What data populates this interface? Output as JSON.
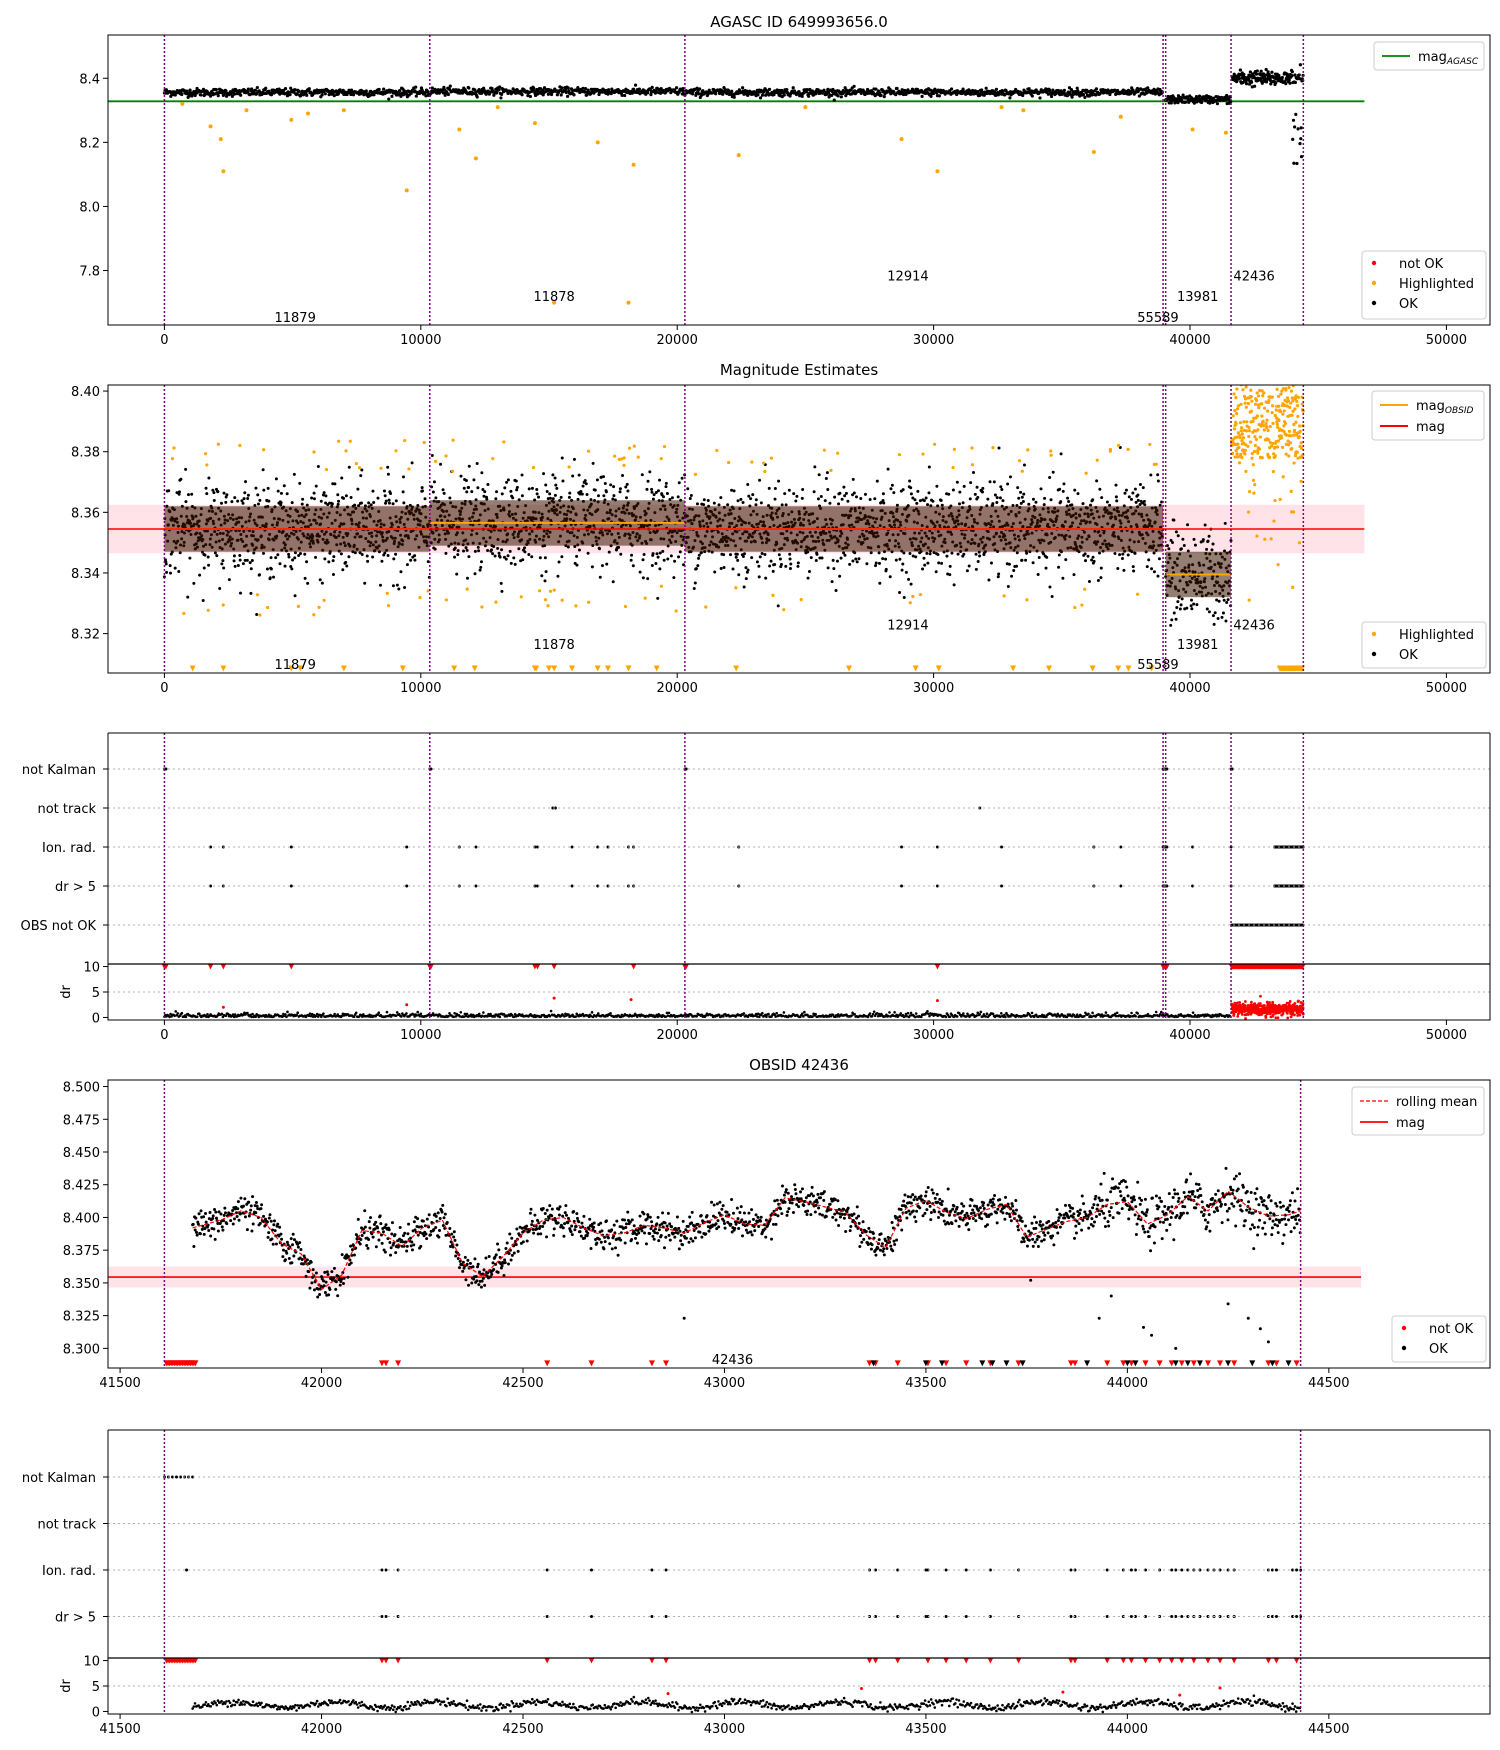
{
  "colors": {
    "ok": "#000000",
    "highlighted": "#ffa500",
    "not_ok": "#ff0000",
    "agasc_line": "#008000",
    "mag_line": "#ff0000",
    "mag_band": "#ffc0cb",
    "obsid_line": "#ffa500",
    "boundary": "#800080",
    "grid": "#b0b0b0"
  },
  "chart_data": [
    {
      "id": "agasc_overview",
      "type": "scatter",
      "title": "AGASC ID 649993656.0",
      "xlim": [
        -2200,
        51700
      ],
      "ylim": [
        7.63,
        8.535
      ],
      "xticks": [
        0,
        10000,
        20000,
        30000,
        40000,
        50000
      ],
      "yticks": [
        7.8,
        8.0,
        8.2,
        8.4
      ],
      "ytick_labels": [
        "7.8",
        "8.0",
        "8.2",
        "8.4"
      ],
      "boundaries": [
        0,
        10350,
        20300,
        38950,
        39050,
        41600,
        44420
      ],
      "hlines": [
        {
          "name": "mag_AGASC",
          "value": 8.328,
          "x_range": [
            -2200,
            46800
          ],
          "color": "#008000"
        }
      ],
      "obsid_labels": [
        {
          "text": "11879",
          "x": 5100,
          "y": 7.655
        },
        {
          "text": "11878",
          "x": 15200,
          "y": 7.72
        },
        {
          "text": "12914",
          "x": 29000,
          "y": 7.785
        },
        {
          "text": "55589",
          "x": 38750,
          "y": 7.655
        },
        {
          "text": "13981",
          "x": 40300,
          "y": 7.72
        },
        {
          "text": "42436",
          "x": 42500,
          "y": 7.785
        }
      ],
      "series": [
        {
          "name": "not OK",
          "color": "#ff0000"
        },
        {
          "name": "Highlighted",
          "color": "#ffa500"
        },
        {
          "name": "OK",
          "color": "#000000"
        }
      ],
      "legend_top": {
        "label": "mag",
        "subscript": "AGASC"
      },
      "legend_bottom_entries": [
        "not OK",
        "Highlighted",
        "OK"
      ]
    },
    {
      "id": "magnitude_estimates",
      "type": "scatter",
      "title": "Magnitude Estimates",
      "xlim": [
        -2200,
        51700
      ],
      "ylim": [
        8.307,
        8.402
      ],
      "xticks": [
        0,
        10000,
        20000,
        30000,
        40000,
        50000
      ],
      "yticks": [
        8.32,
        8.34,
        8.36,
        8.38,
        8.4
      ],
      "ytick_labels": [
        "8.32",
        "8.34",
        "8.36",
        "8.38",
        "8.40"
      ],
      "boundaries": [
        0,
        10350,
        20300,
        38950,
        39050,
        41600,
        44420
      ],
      "mag": {
        "value": 8.3545,
        "band": [
          8.3465,
          8.3625
        ],
        "x_range": [
          -2200,
          46800
        ]
      },
      "obsid_means": [
        {
          "x": [
            0,
            10350
          ],
          "value": 8.3545
        },
        {
          "x": [
            10350,
            20300
          ],
          "value": 8.3565
        },
        {
          "x": [
            20300,
            38950
          ],
          "value": 8.3545
        },
        {
          "x": [
            39050,
            41600
          ],
          "value": 8.3395
        }
      ],
      "obsid_labels": [
        {
          "text": "11879",
          "x": 5100,
          "y": 8.31
        },
        {
          "text": "11878",
          "x": 15200,
          "y": 8.3165
        },
        {
          "text": "12914",
          "x": 29000,
          "y": 8.323
        },
        {
          "text": "55589",
          "x": 38750,
          "y": 8.31
        },
        {
          "text": "13981",
          "x": 40300,
          "y": 8.3165
        },
        {
          "text": "42436",
          "x": 42500,
          "y": 8.323
        }
      ],
      "legend_top": [
        {
          "label": "mag",
          "subscript": "OBSID",
          "color": "#ffa500"
        },
        {
          "label": "mag",
          "subscript": "",
          "color": "#ff0000"
        }
      ],
      "legend_bottom_entries": [
        "Highlighted",
        "OK"
      ]
    },
    {
      "id": "flags_overview",
      "type": "scatter",
      "categories": [
        "not Kalman",
        "not track",
        "Ion. rad.",
        "dr > 5",
        "OBS not OK"
      ],
      "xlim": [
        -2200,
        51700
      ],
      "xticks": [
        0,
        10000,
        20000,
        30000,
        40000,
        50000
      ],
      "boundaries": [
        0,
        10350,
        20300,
        38950,
        39050,
        41600,
        44420
      ],
      "flag_times": {
        "not Kalman": [
          0,
          60,
          10350,
          10400,
          20300,
          20350,
          38950,
          39000,
          39050,
          39100,
          41600,
          41650
        ],
        "not track": [
          15150,
          15250,
          31800
        ],
        "Ion. rad.": [
          1800,
          2300,
          4950,
          9450,
          11500,
          12150,
          14450,
          14550,
          15900,
          16900,
          17300,
          18100,
          18300,
          22400,
          28750,
          30150,
          32650,
          36250,
          37300,
          38950,
          39000,
          39050,
          39100,
          40100,
          41600
        ],
        "dr > 5": [
          1800,
          2300,
          4950,
          9450,
          11500,
          12150,
          14450,
          14550,
          15900,
          16900,
          17300,
          18100,
          18300,
          22400,
          28750,
          30150,
          32650,
          36250,
          37300,
          38950,
          39000,
          39050,
          39100,
          40100,
          41600
        ],
        "OBS not OK": []
      }
    },
    {
      "id": "dr_overview",
      "type": "scatter",
      "ylabel": "dr",
      "xlim": [
        -2200,
        51700
      ],
      "ylim": [
        -0.5,
        10.5
      ],
      "xticks": [
        0,
        10000,
        20000,
        30000,
        40000,
        50000
      ],
      "yticks": [
        0,
        5,
        10
      ],
      "boundaries": [
        0,
        10350,
        20300,
        38950,
        39050,
        41600,
        44420
      ]
    },
    {
      "id": "obsid_42436",
      "type": "line",
      "title": "OBSID 42436",
      "xlim": [
        41470,
        44900
      ],
      "ylim": [
        8.285,
        8.505
      ],
      "xticks": [
        41500,
        42000,
        42500,
        43000,
        43500,
        44000,
        44500
      ],
      "yticks": [
        8.3,
        8.325,
        8.35,
        8.375,
        8.4,
        8.425,
        8.45,
        8.475,
        8.5
      ],
      "ytick_labels": [
        "8.300",
        "8.325",
        "8.350",
        "8.375",
        "8.400",
        "8.425",
        "8.450",
        "8.475",
        "8.500"
      ],
      "boundaries": [
        41610,
        44430
      ],
      "mag": {
        "value": 8.3545,
        "band": [
          8.3465,
          8.3625
        ],
        "x_range": [
          41470,
          44580
        ]
      },
      "label": {
        "text": "42436",
        "x": 43020,
        "y": 8.292
      },
      "rolling_mean": {
        "x": [
          41680,
          41750,
          41800,
          41850,
          41900,
          41950,
          42000,
          42050,
          42100,
          42150,
          42200,
          42250,
          42300,
          42350,
          42400,
          42450,
          42500,
          42550,
          42600,
          42650,
          42700,
          42750,
          42800,
          42850,
          42900,
          42950,
          43000,
          43050,
          43100,
          43150,
          43200,
          43250,
          43300,
          43350,
          43400,
          43450,
          43500,
          43550,
          43600,
          43650,
          43700,
          43750,
          43800,
          43850,
          43900,
          43950,
          44000,
          44050,
          44100,
          44150,
          44200,
          44250,
          44300,
          44350,
          44400,
          44430
        ],
        "y": [
          8.392,
          8.398,
          8.405,
          8.4,
          8.38,
          8.372,
          8.345,
          8.356,
          8.39,
          8.388,
          8.378,
          8.392,
          8.398,
          8.365,
          8.355,
          8.37,
          8.388,
          8.398,
          8.4,
          8.392,
          8.386,
          8.388,
          8.394,
          8.392,
          8.388,
          8.396,
          8.402,
          8.395,
          8.394,
          8.415,
          8.412,
          8.408,
          8.404,
          8.387,
          8.377,
          8.407,
          8.413,
          8.404,
          8.399,
          8.406,
          8.41,
          8.385,
          8.391,
          8.397,
          8.4,
          8.41,
          8.412,
          8.395,
          8.402,
          8.416,
          8.405,
          8.42,
          8.408,
          8.401,
          8.402,
          8.405
        ]
      },
      "legend_entries": [
        "rolling mean",
        "mag"
      ],
      "legend_bottom_entries": [
        "not OK",
        "OK"
      ]
    },
    {
      "id": "flags_42436",
      "type": "scatter",
      "categories": [
        "not Kalman",
        "not track",
        "Ion. rad.",
        "dr > 5"
      ],
      "xlim": [
        41470,
        44900
      ],
      "xticks": [
        41500,
        42000,
        42500,
        43000,
        43500,
        44000,
        44500
      ],
      "boundaries": [
        41610,
        44430
      ],
      "flag_times": {
        "not Kalman": [
          41610,
          41620,
          41630,
          41640,
          41650,
          41660,
          41670,
          41680
        ],
        "not track": [],
        "Ion. rad.": [
          41665,
          42150,
          42160,
          42190,
          42560,
          42670,
          42820,
          42855,
          43360,
          43375,
          43430,
          43500,
          43505,
          43550,
          43600,
          43660,
          43730,
          43860,
          43870,
          43950,
          43990,
          44010,
          44020,
          44045,
          44080,
          44110,
          44120,
          44135,
          44150,
          44165,
          44180,
          44200,
          44215,
          44230,
          44250,
          44265,
          44350,
          44360,
          44370,
          44410,
          44420,
          44430
        ],
        "dr > 5": [
          42150,
          42160,
          42190,
          42560,
          42670,
          42820,
          42855,
          43360,
          43375,
          43430,
          43500,
          43505,
          43550,
          43600,
          43660,
          43730,
          43860,
          43870,
          43950,
          43990,
          44010,
          44020,
          44045,
          44080,
          44110,
          44120,
          44135,
          44150,
          44165,
          44180,
          44200,
          44215,
          44230,
          44250,
          44265,
          44350,
          44360,
          44370,
          44410,
          44420,
          44430
        ]
      }
    },
    {
      "id": "dr_42436",
      "type": "scatter",
      "ylabel": "dr",
      "xlim": [
        41470,
        44900
      ],
      "ylim": [
        -0.5,
        10.5
      ],
      "xticks": [
        41500,
        42000,
        42500,
        43000,
        43500,
        44000,
        44500
      ],
      "yticks": [
        0,
        5,
        10
      ],
      "boundaries": [
        41610,
        44430
      ]
    }
  ]
}
